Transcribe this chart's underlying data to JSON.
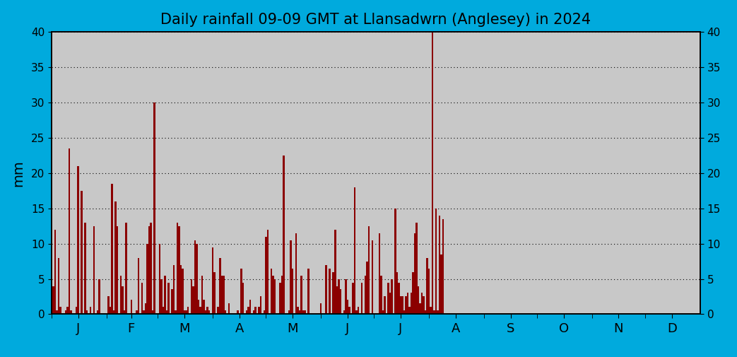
{
  "title": "Daily rainfall 09-09 GMT at Llansadwrn (Anglesey) in 2024",
  "ylabel": "mm",
  "background_color": "#00AADD",
  "plot_bg_color": "#C8C8C8",
  "bar_color": "#8B0000",
  "ylim": [
    0,
    40
  ],
  "yticks": [
    0,
    5,
    10,
    15,
    20,
    25,
    30,
    35,
    40
  ],
  "month_labels": [
    "J",
    "F",
    "M",
    "A",
    "M",
    "J",
    "J",
    "A",
    "S",
    "O",
    "N",
    "D"
  ],
  "daily_rainfall": [
    5.0,
    4.0,
    12.0,
    0.5,
    8.0,
    1.0,
    0.0,
    0.0,
    0.5,
    1.0,
    23.5,
    0.5,
    0.0,
    0.0,
    1.0,
    21.0,
    0.0,
    17.5,
    0.0,
    13.0,
    0.5,
    0.0,
    1.0,
    0.0,
    12.5,
    0.0,
    0.5,
    5.0,
    0.0,
    0.0,
    0.0,
    0.0,
    2.5,
    1.0,
    18.5,
    0.5,
    16.0,
    12.5,
    0.0,
    5.5,
    4.0,
    0.5,
    13.0,
    0.0,
    0.0,
    2.0,
    0.0,
    0.0,
    0.5,
    8.0,
    0.0,
    4.5,
    0.5,
    1.5,
    10.0,
    12.5,
    13.0,
    0.5,
    30.0,
    0.0,
    0.0,
    10.0,
    5.0,
    1.0,
    5.5,
    0.5,
    4.5,
    0.0,
    3.5,
    7.0,
    0.5,
    13.0,
    12.5,
    7.0,
    6.5,
    0.5,
    0.5,
    1.0,
    0.0,
    5.0,
    4.0,
    10.5,
    10.0,
    2.0,
    1.0,
    5.5,
    2.0,
    0.5,
    1.0,
    0.5,
    0.0,
    9.5,
    6.0,
    0.0,
    1.0,
    8.0,
    5.5,
    5.5,
    0.5,
    0.0,
    1.5,
    0.0,
    0.0,
    0.0,
    0.0,
    0.5,
    0.0,
    6.5,
    4.5,
    0.0,
    0.5,
    1.0,
    2.0,
    0.0,
    0.5,
    1.0,
    0.0,
    1.0,
    2.5,
    0.0,
    0.5,
    11.0,
    12.0,
    0.0,
    6.5,
    5.5,
    5.0,
    0.0,
    0.0,
    4.5,
    5.5,
    22.5,
    0.0,
    0.0,
    0.5,
    10.5,
    6.5,
    0.0,
    11.5,
    1.0,
    0.5,
    5.5,
    0.5,
    0.5,
    0.0,
    6.5,
    0.0,
    0.0,
    0.0,
    0.0,
    0.0,
    0.0,
    1.5,
    0.0,
    0.0,
    7.0,
    0.0,
    6.5,
    0.0,
    6.0,
    12.0,
    4.0,
    5.0,
    3.5,
    0.0,
    0.5,
    5.0,
    2.0,
    1.0,
    0.0,
    4.5,
    18.0,
    0.5,
    1.0,
    0.0,
    4.5,
    0.0,
    5.5,
    7.5,
    12.5,
    0.0,
    10.5,
    0.0,
    0.0,
    0.0,
    11.5,
    5.5,
    0.5,
    2.5,
    0.0,
    4.5,
    3.0,
    5.0,
    0.0,
    15.0,
    6.0,
    4.5,
    2.5,
    2.5,
    0.5,
    2.5,
    3.0,
    1.0,
    3.0,
    6.0,
    11.5,
    13.0,
    4.0,
    1.5,
    3.0,
    2.5,
    0.5,
    8.0,
    6.5,
    1.0,
    40.0,
    0.5,
    15.0,
    0.5,
    14.0,
    8.5,
    13.5,
    0.0,
    0.0,
    0.0,
    0.0,
    0.0,
    0.0,
    0.0,
    0.0,
    0.0,
    0.0,
    0.0,
    0.0,
    0.0,
    0.0,
    0.0,
    0.0,
    0.0,
    0.0,
    0.0,
    0.0,
    0.0,
    0.0,
    0.0,
    0.0,
    0.0,
    0.0,
    0.0,
    0.0,
    0.0,
    0.0,
    0.0,
    0.0,
    0.0,
    0.0,
    0.0,
    0.0,
    0.0,
    0.0,
    0.0,
    0.0,
    0.0,
    0.0,
    0.0,
    0.0,
    0.0,
    0.0,
    0.0,
    0.0,
    0.0,
    0.0,
    0.0,
    0.0,
    0.0,
    0.0,
    0.0,
    0.0,
    0.0,
    0.0,
    0.0,
    0.0,
    0.0,
    0.0,
    0.0,
    0.0,
    0.0,
    0.0,
    0.0,
    0.0,
    0.0,
    0.0,
    0.0,
    0.0,
    0.0,
    0.0,
    0.0,
    0.0,
    0.0,
    0.0,
    0.0,
    0.0,
    0.0,
    0.0,
    0.0,
    0.0,
    0.0,
    0.0,
    0.0,
    0.0,
    0.0,
    0.0,
    0.0,
    0.0,
    0.0,
    0.0,
    0.0,
    0.0,
    0.0,
    0.0,
    0.0,
    0.0,
    0.0,
    0.0,
    0.0,
    0.0,
    0.0,
    0.0,
    0.0,
    0.0,
    0.0,
    0.0,
    0.0,
    0.0,
    0.0,
    0.0,
    0.0,
    0.0,
    0.0,
    0.0
  ]
}
